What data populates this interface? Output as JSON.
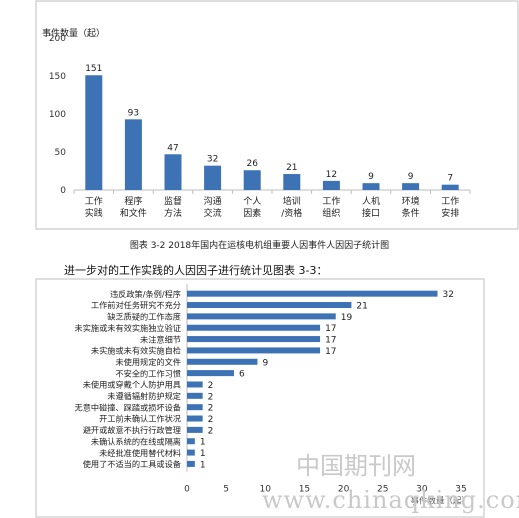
{
  "caption1": "图表 3-2 2018年国内在运核电机组重要人因事件人因因子统计图",
  "intro_text": "进一步对的工作实践的人因因子进行统计见图表 3-3：",
  "watermark_cn": "中国期刊网",
  "watermark_url": "www.chinaqking.com",
  "chart_data": [
    {
      "type": "bar",
      "orientation": "vertical",
      "ylabel": "事件数量（起）",
      "xlabel": "",
      "ylim": [
        0,
        200
      ],
      "yticks": [
        0,
        50,
        100,
        150,
        200
      ],
      "grid": false,
      "categories": [
        "工作实践",
        "程序和文件",
        "监督方法",
        "沟通交流",
        "个人因素",
        "培训/资格",
        "工作组织",
        "人机接口",
        "环境条件",
        "工作安排"
      ],
      "category_lines": [
        [
          "工作",
          "实践"
        ],
        [
          "程序",
          "和文件"
        ],
        [
          "监督",
          "方法"
        ],
        [
          "沟通",
          "交流"
        ],
        [
          "个人",
          "因素"
        ],
        [
          "培训",
          "/资格"
        ],
        [
          "工作",
          "组织"
        ],
        [
          "人机",
          "接口"
        ],
        [
          "环境",
          "条件"
        ],
        [
          "工作",
          "安排"
        ]
      ],
      "values": [
        151,
        93,
        47,
        32,
        26,
        21,
        12,
        9,
        9,
        7
      ],
      "color": "#3d72b5"
    },
    {
      "type": "bar",
      "orientation": "horizontal",
      "xlabel": "事件数量（起）",
      "ylabel": "",
      "xlim": [
        0,
        35
      ],
      "xticks": [
        0,
        5,
        10,
        15,
        20,
        25,
        30,
        35
      ],
      "grid": false,
      "categories": [
        "违反政策/条例/程序",
        "工作前对任务研究不充分",
        "缺乏质疑的工作态度",
        "未实施或未有效实施独立验证",
        "未注意细节",
        "未实施或未有效实施自检",
        "未使用规定的文件",
        "不安全的工作习惯",
        "未使用或穿戴个人防护用具",
        "未遵循辐射防护规定",
        "无意中碰撞、踩踏或损坏设备",
        "开工前未确认工作状况",
        "避开或故意不执行行政管理",
        "未确认系统的在线或隔离",
        "未经批准使用替代材料",
        "使用了不适当的工具或设备"
      ],
      "values": [
        32,
        21,
        19,
        17,
        17,
        17,
        9,
        6,
        2,
        2,
        2,
        2,
        2,
        1,
        1,
        1
      ],
      "color": "#3d72b5"
    }
  ]
}
